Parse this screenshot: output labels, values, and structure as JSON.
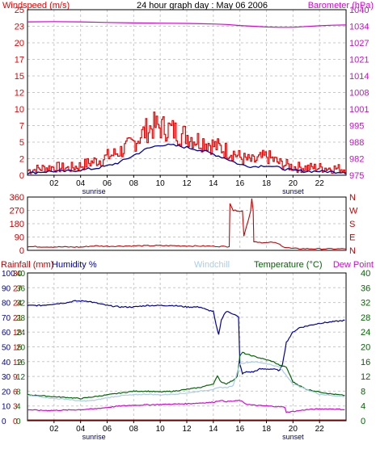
{
  "colors": {
    "wind": "#ee0000",
    "wind_avg": "#0000aa",
    "barometer": "#dd00dd",
    "wind_dir": "#cc0000",
    "rain": "#cc0000",
    "humidity": "#0000aa",
    "windchill": "#aaccee",
    "temperature": "#006600",
    "dew_point": "#dd00dd",
    "grid": "#c8c8c8",
    "frame": "#000000",
    "sun": "#000066"
  },
  "chart_data": [
    {
      "type": "line",
      "title": "24 hour graph day : May 06 2006",
      "left_label": "Windspeed (m/s)",
      "right_label": "Barometer (hPa)",
      "x_ticks": [
        "02",
        "04",
        "06",
        "08",
        "10",
        "12",
        "14",
        "16",
        "18",
        "20",
        "22"
      ],
      "x_range_hours": [
        0,
        24
      ],
      "sunrise_label": "sunrise",
      "sunset_label": "sunset",
      "sunrise_hour": 5,
      "sunset_hour": 20,
      "y_left_ticks": [
        "0",
        "2",
        "5",
        "7",
        "10",
        "12",
        "15",
        "17",
        "20",
        "23",
        "25"
      ],
      "y_right_ticks": [
        "975",
        "982",
        "988",
        "995",
        "1001",
        "1008",
        "1014",
        "1021",
        "1027",
        "1034",
        "1040"
      ],
      "ylim_left": [
        0,
        25
      ],
      "ylim_right": [
        975,
        1040
      ],
      "series": [
        {
          "key": "wind",
          "axis": "left",
          "style": "jagged",
          "x": [
            0,
            1,
            2,
            3,
            4,
            4.5,
            5,
            5.5,
            6,
            6.5,
            7,
            7.5,
            8,
            8.5,
            9,
            9.5,
            10,
            10.5,
            11,
            11.5,
            12,
            12.5,
            13,
            13.5,
            14,
            14.5,
            15,
            15.5,
            16,
            16.5,
            17,
            17.5,
            18,
            18.5,
            19,
            20,
            21,
            22,
            23,
            24
          ],
          "y": [
            0.5,
            0.8,
            1.0,
            0.8,
            1.2,
            1.5,
            1.8,
            2.0,
            2.5,
            2.8,
            3.3,
            3.8,
            4.5,
            5.5,
            6.3,
            6.8,
            6.6,
            6.5,
            6.1,
            5.6,
            5.5,
            5.0,
            4.7,
            4.5,
            4.0,
            3.7,
            3.3,
            3.0,
            2.3,
            2.0,
            1.8,
            2.2,
            2.5,
            2.0,
            1.5,
            1.0,
            0.9,
            0.9,
            0.8,
            0.7
          ]
        },
        {
          "key": "wind_avg",
          "axis": "left",
          "style": "smooth",
          "x": [
            0,
            1,
            2,
            3,
            4,
            5,
            6,
            7,
            8,
            9,
            10,
            11,
            12,
            13,
            14,
            15,
            16,
            17,
            18,
            19,
            20,
            21,
            22,
            23,
            24
          ],
          "y": [
            0.3,
            0.5,
            0.6,
            0.6,
            0.8,
            1.0,
            1.4,
            2.0,
            3.0,
            4.0,
            4.6,
            4.5,
            4.2,
            3.8,
            3.2,
            2.5,
            1.6,
            1.3,
            1.5,
            1.1,
            0.7,
            0.6,
            0.6,
            0.5,
            0.5
          ]
        },
        {
          "key": "barometer",
          "axis": "right",
          "style": "smooth",
          "x": [
            0,
            2,
            4,
            6,
            8,
            10,
            12,
            14,
            15,
            16,
            17,
            18,
            19,
            20,
            21,
            22,
            23,
            24
          ],
          "y": [
            1035.2,
            1035.3,
            1035.2,
            1035.0,
            1034.8,
            1034.7,
            1034.6,
            1034.4,
            1034.2,
            1033.8,
            1033.5,
            1033.2,
            1033.1,
            1033.1,
            1033.4,
            1033.7,
            1033.9,
            1034.0
          ]
        }
      ]
    },
    {
      "type": "line",
      "title": "",
      "y_left_ticks": [
        "0",
        "90",
        "180",
        "270",
        "360"
      ],
      "y_right_ticks": [
        "N",
        "E",
        "S",
        "W",
        "N"
      ],
      "ylim": [
        0,
        360
      ],
      "series": [
        {
          "key": "wind_dir",
          "x": [
            0,
            4,
            5,
            6,
            8,
            10,
            12,
            14,
            15.2,
            15.25,
            15.5,
            16.2,
            16.3,
            16.8,
            16.9,
            17.0,
            17.05,
            17.5,
            18.0,
            18.5,
            19,
            19.4,
            20,
            22,
            24
          ],
          "y": [
            25,
            22,
            30,
            28,
            30,
            32,
            30,
            28,
            25,
            320,
            270,
            265,
            95,
            262,
            350,
            270,
            60,
            55,
            50,
            55,
            40,
            20,
            12,
            10,
            10
          ]
        }
      ]
    },
    {
      "type": "line",
      "title": "",
      "labels": {
        "rain": "Rainfall (mm)",
        "humidity": "Humidity %",
        "windchill": "Windchill",
        "temperature": "Temperature (°C)",
        "dew_point": "Dew Point"
      },
      "y_rain_ticks": [
        "0",
        "3",
        "6",
        "9",
        "12",
        "15",
        "18",
        "21",
        "24",
        "27",
        "30"
      ],
      "y_hum_ticks": [
        "0",
        "10",
        "20",
        "30",
        "40",
        "50",
        "60",
        "70",
        "80",
        "90",
        "100"
      ],
      "y_temp_left_ticks": [
        "0",
        "4",
        "8",
        "12",
        "16",
        "20",
        "24",
        "28",
        "32",
        "36",
        "40"
      ],
      "y_temp_right_ticks": [
        "0",
        "4",
        "8",
        "12",
        "16",
        "20",
        "24",
        "28",
        "32",
        "36",
        "40"
      ],
      "ylim_temp": [
        0,
        40
      ],
      "ylim_humidity": [
        0,
        100
      ],
      "series": [
        {
          "key": "humidity",
          "axis": "humidity",
          "x": [
            0,
            1,
            2,
            3,
            3.5,
            4,
            4.5,
            5,
            6,
            7,
            8,
            9,
            10,
            11,
            12,
            13,
            13.5,
            14,
            14.2,
            14.4,
            14.6,
            14.8,
            15,
            15.3,
            15.6,
            15.9,
            16.0,
            16.2,
            16.5,
            17,
            17.5,
            18,
            18.5,
            19,
            19.2,
            19.5,
            20,
            20.5,
            21,
            22,
            23,
            24
          ],
          "y": [
            78,
            78,
            79,
            80,
            81,
            81,
            81,
            80,
            78,
            77,
            77,
            78,
            78,
            78,
            77,
            77,
            75,
            74,
            65,
            58,
            68,
            72,
            74,
            73,
            72,
            70,
            38,
            32,
            33,
            33,
            35,
            35,
            35,
            34,
            38,
            53,
            60,
            63,
            64,
            66,
            67,
            68
          ]
        },
        {
          "key": "temperature",
          "axis": "temp",
          "x": [
            0,
            1,
            2,
            3,
            4,
            5,
            6,
            7,
            8,
            9,
            10,
            11,
            12,
            13,
            14,
            14.3,
            14.6,
            15,
            15.5,
            15.8,
            16,
            16.2,
            16.5,
            17,
            17.5,
            18,
            18.5,
            19,
            19.5,
            20,
            20.5,
            21,
            22,
            23,
            24
          ],
          "y": [
            7.0,
            6.8,
            6.5,
            6.3,
            6.0,
            6.5,
            7.0,
            7.5,
            8.0,
            8.0,
            7.8,
            8.0,
            8.5,
            9.0,
            10.0,
            12.0,
            10.5,
            10.0,
            11.0,
            12.0,
            17.5,
            18.5,
            18.0,
            17.5,
            17.0,
            16.5,
            16.0,
            15.0,
            14.5,
            10.5,
            9.5,
            8.5,
            7.8,
            7.2,
            6.8
          ]
        },
        {
          "key": "windchill",
          "axis": "temp",
          "x": [
            0,
            1,
            2,
            3,
            4,
            5,
            6,
            7,
            8,
            9,
            10,
            11,
            12,
            13,
            14,
            14.5,
            15,
            15.5,
            16,
            17,
            18,
            19,
            20,
            21,
            22,
            23,
            24
          ],
          "y": [
            6.8,
            6.5,
            6.0,
            5.8,
            5.3,
            5.5,
            6.2,
            6.8,
            7.0,
            7.2,
            7.0,
            7.2,
            7.5,
            8.0,
            8.5,
            9.0,
            9.0,
            9.5,
            15.5,
            16.0,
            15.5,
            14.5,
            10.0,
            8.5,
            7.2,
            6.8,
            6.5
          ]
        },
        {
          "key": "dew_point",
          "axis": "temp",
          "x": [
            0,
            1,
            2,
            3,
            4,
            5,
            6,
            7,
            8,
            9,
            10,
            11,
            12,
            13,
            14,
            14.5,
            15,
            15.5,
            16,
            16.5,
            17,
            18,
            19,
            19.4,
            19.5,
            20,
            21,
            22,
            23,
            24
          ],
          "y": [
            3.0,
            2.8,
            2.8,
            2.9,
            3.0,
            3.2,
            3.6,
            4.0,
            4.2,
            4.3,
            4.4,
            4.5,
            4.6,
            4.8,
            5.0,
            5.5,
            5.2,
            5.3,
            5.5,
            4.5,
            4.2,
            4.0,
            3.8,
            3.6,
            2.3,
            2.5,
            3.0,
            3.2,
            3.2,
            3.0
          ]
        },
        {
          "key": "rain",
          "axis": "rain",
          "x": [
            0,
            24
          ],
          "y": [
            0,
            0
          ]
        }
      ]
    }
  ]
}
